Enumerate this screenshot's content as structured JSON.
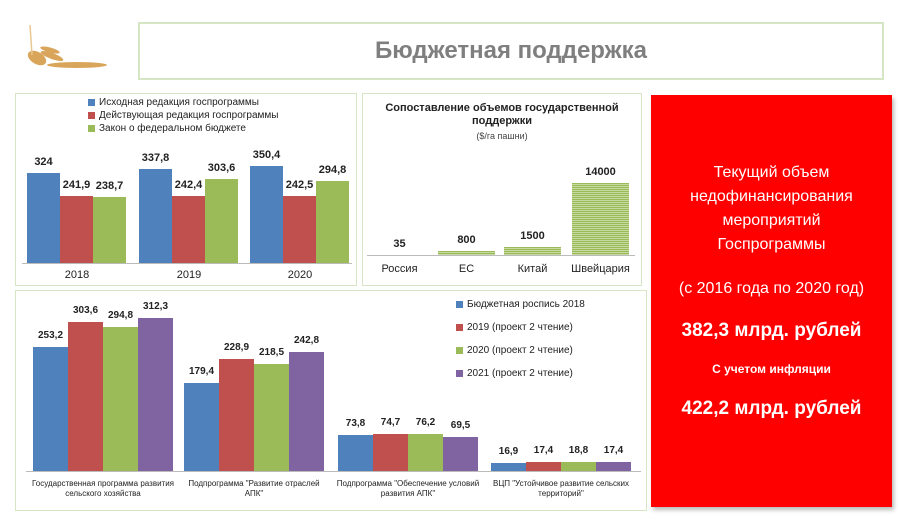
{
  "header": {
    "title": "Бюджетная поддержка"
  },
  "colors": {
    "blue": "#4f81bd",
    "red": "#c0504d",
    "green": "#9bbb59",
    "purple": "#8064a2",
    "panel_red": "#fe0000"
  },
  "chart_data": [
    {
      "type": "bar",
      "title": "",
      "categories": [
        "2018",
        "2019",
        "2020"
      ],
      "series": [
        {
          "name": "Исходная редакция госпрограммы",
          "values": [
            324,
            337.8,
            350.4
          ],
          "labels": [
            "324",
            "337,8",
            "350,4"
          ]
        },
        {
          "name": "Действующая редакция госпрограммы",
          "values": [
            241.9,
            242.4,
            242.5
          ],
          "labels": [
            "241,9",
            "242,4",
            "242,5"
          ]
        },
        {
          "name": "Закон о федеральном бюджете",
          "values": [
            238.7,
            303.6,
            294.8
          ],
          "labels": [
            "238,7",
            "303,6",
            "294,8"
          ]
        }
      ],
      "legend": "top"
    },
    {
      "type": "bar",
      "title": "Сопоставление объемов государственной поддержки",
      "subtitle": "($/га пашни)",
      "categories": [
        "Россия",
        "ЕС",
        "Китай",
        "Швейцария"
      ],
      "values": [
        35,
        800,
        1500,
        14000
      ],
      "labels": [
        "35",
        "800",
        "1500",
        "14000"
      ]
    },
    {
      "type": "bar",
      "categories": [
        "Государственная программа развития сельского хозяйства",
        "Подпрограмма \"Развитие отраслей АПК\"",
        "Подпрограмма \"Обеспечение условий развития АПК\"",
        "ВЦП \"Устойчивое развитие сельских территорий\""
      ],
      "series": [
        {
          "name": "Бюджетная роспись 2018",
          "values": [
            253.2,
            179.4,
            73.8,
            16.9
          ],
          "labels": [
            "253,2",
            "179,4",
            "73,8",
            "16,9"
          ]
        },
        {
          "name": "2019 (проект 2 чтение)",
          "values": [
            303.6,
            228.9,
            74.7,
            17.4
          ],
          "labels": [
            "303,6",
            "228,9",
            "74,7",
            "17,4"
          ]
        },
        {
          "name": "2020 (проект 2 чтение)",
          "values": [
            294.8,
            218.5,
            76.2,
            18.8
          ],
          "labels": [
            "294,8",
            "218,5",
            "76,2",
            "18,8"
          ]
        },
        {
          "name": "2021 (проект 2 чтение)",
          "values": [
            312.3,
            242.8,
            69.5,
            17.4
          ],
          "labels": [
            "312,3",
            "242,8",
            "69,5",
            "17,4"
          ]
        }
      ],
      "legend": "right"
    }
  ],
  "panel": {
    "line1": "Текущий объем",
    "line2": "недофинансирования",
    "line3": "мероприятий",
    "line4": "Госпрограммы",
    "period": "(с 2016 года по 2020 год)",
    "amount1": "382,3 млрд. рублей",
    "note": "С учетом инфляции",
    "amount2": "422,2 млрд. рублей"
  }
}
